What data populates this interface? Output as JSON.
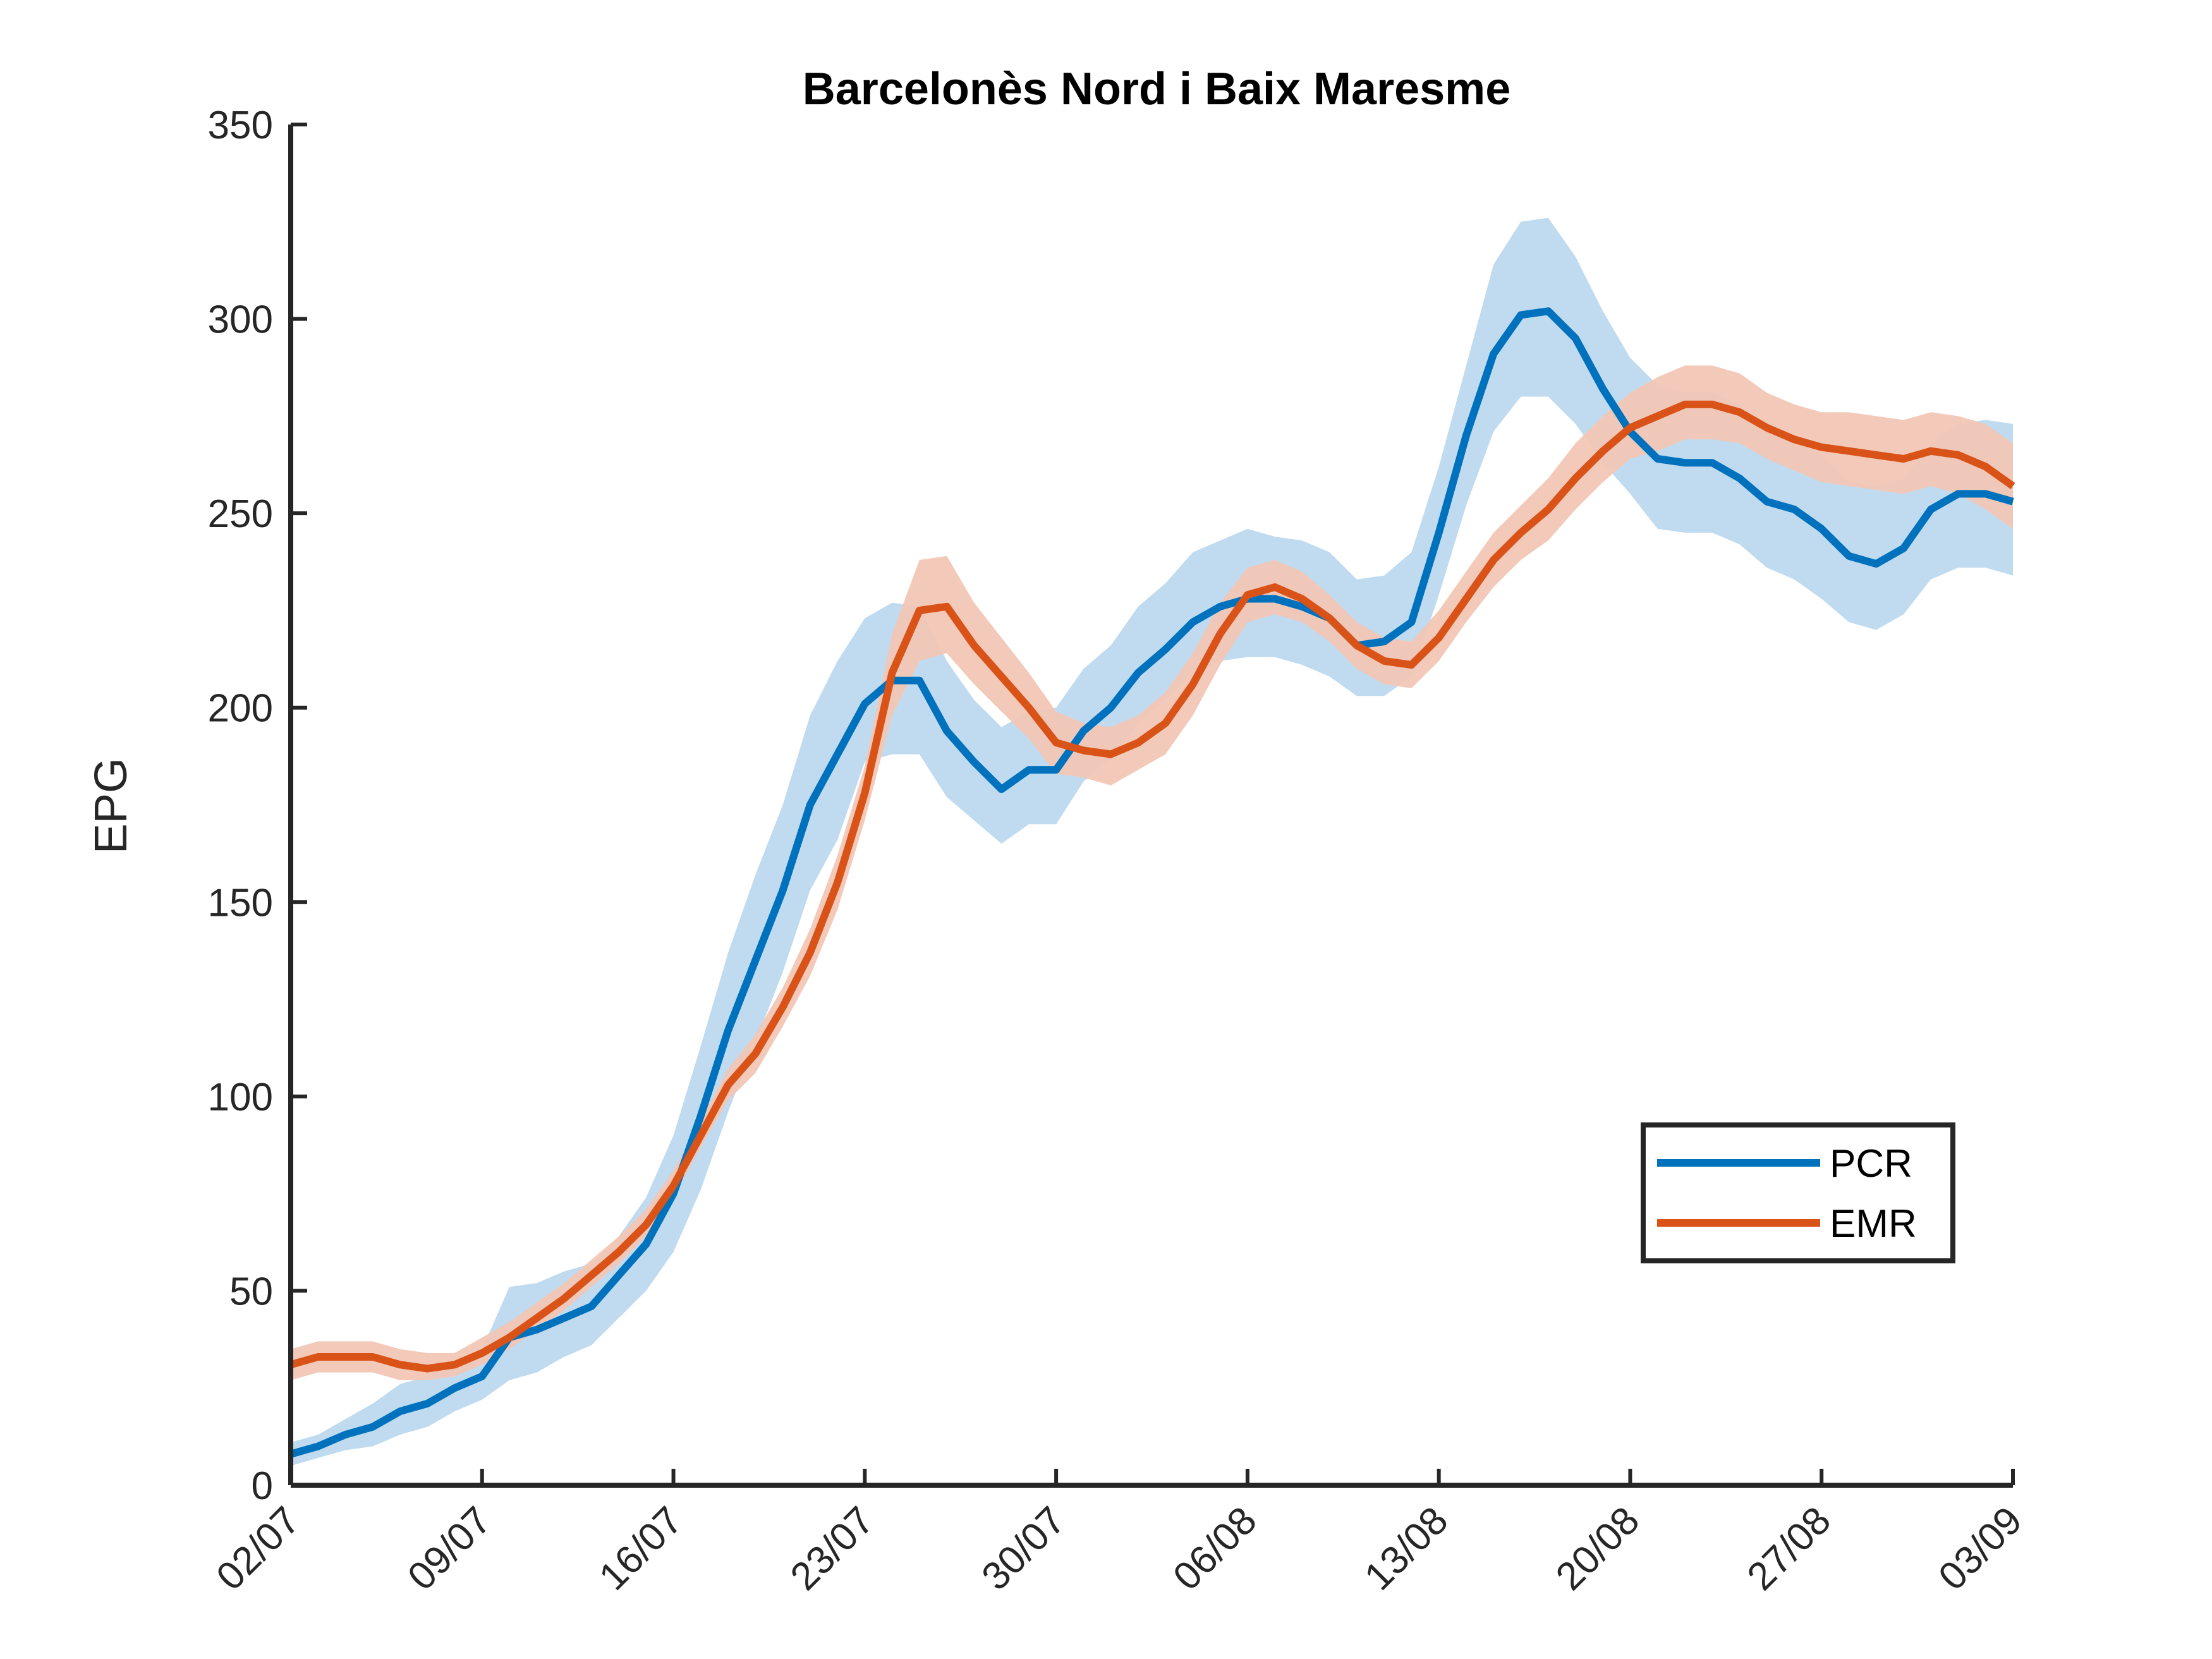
{
  "chart_data": {
    "type": "line",
    "title": "Barcelonès Nord i Baix Maresme",
    "ylabel": "EPG",
    "xlabel": "",
    "ylim": [
      0,
      350
    ],
    "yticks": [
      0,
      50,
      100,
      150,
      200,
      250,
      300,
      350
    ],
    "xlim": [
      "02/07",
      "03/09"
    ],
    "xticks": [
      "02/07",
      "09/07",
      "16/07",
      "23/07",
      "30/07",
      "06/08",
      "13/08",
      "20/08",
      "27/08",
      "03/09"
    ],
    "x": [
      "02/07",
      "03/07",
      "04/07",
      "05/07",
      "06/07",
      "07/07",
      "08/07",
      "09/07",
      "10/07",
      "11/07",
      "12/07",
      "13/07",
      "14/07",
      "15/07",
      "16/07",
      "17/07",
      "18/07",
      "19/07",
      "20/07",
      "21/07",
      "22/07",
      "23/07",
      "24/07",
      "25/07",
      "26/07",
      "27/07",
      "28/07",
      "29/07",
      "30/07",
      "31/07",
      "01/08",
      "02/08",
      "03/08",
      "04/08",
      "05/08",
      "06/08",
      "07/08",
      "08/08",
      "09/08",
      "10/08",
      "11/08",
      "12/08",
      "13/08",
      "14/08",
      "15/08",
      "16/08",
      "17/08",
      "18/08",
      "19/08",
      "20/08",
      "21/08",
      "22/08",
      "23/08",
      "24/08",
      "25/08",
      "26/08",
      "27/08",
      "28/08",
      "29/08",
      "30/08",
      "31/08",
      "01/09",
      "02/09",
      "03/09"
    ],
    "legend_position": "lower-right",
    "grid": false,
    "series": [
      {
        "name": "PCR",
        "color": "#0072BD",
        "band_color": "#BDD9EF",
        "values": [
          8,
          10,
          13,
          15,
          19,
          21,
          25,
          28,
          38,
          40,
          43,
          46,
          54,
          62,
          75,
          95,
          117,
          135,
          153,
          175,
          188,
          201,
          207,
          207,
          194,
          186,
          179,
          184,
          184,
          194,
          200,
          209,
          215,
          222,
          226,
          228,
          228,
          226,
          223,
          216,
          217,
          222,
          245,
          270,
          291,
          301,
          302,
          295,
          282,
          271,
          264,
          263,
          263,
          259,
          253,
          251,
          246,
          239,
          237,
          241,
          251,
          255,
          255,
          253
        ],
        "lower": [
          5,
          7,
          9,
          10,
          13,
          15,
          19,
          22,
          27,
          29,
          33,
          36,
          43,
          50,
          60,
          76,
          96,
          114,
          132,
          153,
          166,
          186,
          188,
          188,
          177,
          171,
          165,
          170,
          170,
          181,
          187,
          196,
          202,
          209,
          212,
          213,
          213,
          211,
          208,
          203,
          203,
          208,
          229,
          252,
          271,
          280,
          280,
          273,
          263,
          255,
          246,
          245,
          245,
          242,
          236,
          233,
          228,
          222,
          220,
          224,
          233,
          236,
          236,
          234
        ],
        "upper": [
          11,
          13,
          17,
          21,
          26,
          28,
          32,
          35,
          51,
          52,
          55,
          57,
          64,
          74,
          90,
          113,
          137,
          157,
          175,
          198,
          212,
          223,
          227,
          226,
          212,
          202,
          195,
          199,
          200,
          210,
          216,
          226,
          232,
          240,
          243,
          246,
          244,
          243,
          240,
          233,
          234,
          240,
          262,
          288,
          314,
          325,
          326,
          316,
          302,
          290,
          283,
          281,
          281,
          278,
          272,
          270,
          265,
          258,
          257,
          259,
          268,
          273,
          274,
          273
        ]
      },
      {
        "name": "EMR",
        "color": "#D95319",
        "band_color": "#F2C7B5",
        "values": [
          31,
          33,
          33,
          33,
          31,
          30,
          31,
          34,
          38,
          43,
          48,
          54,
          60,
          67,
          77,
          90,
          103,
          111,
          123,
          137,
          155,
          178,
          209,
          225,
          226,
          216,
          208,
          200,
          191,
          189,
          188,
          191,
          196,
          206,
          219,
          229,
          231,
          228,
          223,
          216,
          212,
          211,
          218,
          228,
          238,
          245,
          251,
          259,
          266,
          272,
          275,
          278,
          278,
          276,
          272,
          269,
          267,
          266,
          265,
          264,
          266,
          265,
          262,
          257
        ],
        "lower": [
          27,
          29,
          29,
          29,
          27,
          27,
          28,
          31,
          35,
          40,
          45,
          51,
          57,
          64,
          74,
          87,
          99,
          106,
          118,
          131,
          148,
          171,
          198,
          212,
          214,
          206,
          199,
          192,
          183,
          182,
          180,
          184,
          188,
          198,
          211,
          222,
          224,
          222,
          217,
          210,
          206,
          205,
          212,
          222,
          231,
          238,
          243,
          251,
          258,
          264,
          266,
          269,
          269,
          268,
          264,
          261,
          258,
          257,
          256,
          255,
          257,
          255,
          251,
          246
        ],
        "upper": [
          35,
          37,
          37,
          37,
          35,
          34,
          34,
          38,
          42,
          47,
          52,
          58,
          64,
          71,
          81,
          94,
          107,
          116,
          128,
          143,
          162,
          185,
          219,
          238,
          239,
          227,
          218,
          209,
          199,
          196,
          195,
          198,
          204,
          214,
          227,
          236,
          238,
          235,
          229,
          222,
          218,
          217,
          225,
          235,
          245,
          252,
          259,
          268,
          275,
          281,
          285,
          288,
          288,
          286,
          281,
          278,
          276,
          276,
          275,
          274,
          276,
          275,
          273,
          268
        ]
      }
    ]
  }
}
